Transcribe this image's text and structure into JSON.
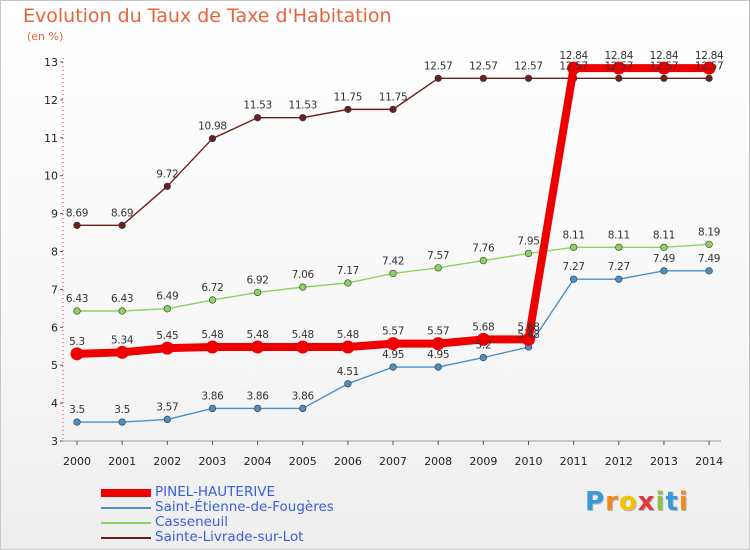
{
  "title": "Evolution du Taux de Taxe d'Habitation",
  "unit": "(en %)",
  "brand": {
    "letters": [
      "P",
      "r",
      "o",
      "x",
      "i",
      "t",
      "i"
    ],
    "colors": [
      "#3a9ad9",
      "#f08a1c",
      "#f5c400",
      "#e03a3a",
      "#8bc34a",
      "#3a9ad9",
      "#f08a1c"
    ]
  },
  "chart_data": {
    "type": "line",
    "title": "Evolution du Taux de Taxe d'Habitation",
    "ylabel": "(en %)",
    "xlabel": "",
    "ylim": [
      3,
      13
    ],
    "yticks": [
      3,
      4,
      5,
      6,
      7,
      8,
      9,
      10,
      11,
      12,
      13
    ],
    "x": [
      "2000",
      "2001",
      "2002",
      "2003",
      "2004",
      "2005",
      "2006",
      "2007",
      "2008",
      "2009",
      "2010",
      "2011",
      "2012",
      "2013",
      "2014"
    ],
    "grid": false,
    "legend": "bottom-left",
    "series": [
      {
        "name": "Sainte-Livrade-sur-Lot",
        "color": "#6b1f1f",
        "values": [
          8.69,
          8.69,
          9.72,
          10.98,
          11.53,
          11.53,
          11.75,
          11.75,
          12.57,
          12.57,
          12.57,
          12.57,
          12.57,
          12.57,
          12.57
        ],
        "labels": [
          "8.69",
          "8.69",
          "9.72",
          "10.98",
          "11.53",
          "11.53",
          "11.75",
          "11.75",
          "12.57",
          "12.57",
          "12.57",
          "12.57",
          "12.57",
          "12.57",
          "12.57"
        ]
      },
      {
        "name": "Casseneuil",
        "color": "#8dd35f",
        "values": [
          6.43,
          6.43,
          6.49,
          6.72,
          6.92,
          7.06,
          7.17,
          7.42,
          7.57,
          7.76,
          7.95,
          8.11,
          8.11,
          8.11,
          8.19
        ],
        "labels": [
          "6.43",
          "6.43",
          "6.49",
          "6.72",
          "6.92",
          "7.06",
          "7.17",
          "7.42",
          "7.57",
          "7.76",
          "7.95",
          "8.11",
          "8.11",
          "8.11",
          "8.19"
        ]
      },
      {
        "name": "Saint-Étienne-de-Fougères",
        "color": "#4a90c8",
        "values": [
          3.5,
          3.5,
          3.57,
          3.86,
          3.86,
          3.86,
          4.51,
          4.95,
          4.95,
          5.2,
          5.48,
          7.27,
          7.27,
          7.49,
          7.49
        ],
        "labels": [
          "3.5",
          "3.5",
          "3.57",
          "3.86",
          "3.86",
          "3.86",
          "4.51",
          "4.95",
          "4.95",
          "5.2",
          "5.48",
          "7.27",
          "7.27",
          "7.49",
          "7.49"
        ]
      },
      {
        "name": "PINEL-HAUTERIVE",
        "color": "#ee0000",
        "values": [
          5.3,
          5.34,
          5.45,
          5.48,
          5.48,
          5.48,
          5.48,
          5.57,
          5.57,
          5.68,
          5.68,
          12.84,
          12.84,
          12.84,
          12.84
        ],
        "labels": [
          "5.3",
          "5.34",
          "5.45",
          "5.48",
          "5.48",
          "5.48",
          "5.48",
          "5.57",
          "5.57",
          "5.68",
          "5.68",
          "12.84",
          "12.84",
          "12.84",
          "12.84"
        ]
      }
    ]
  },
  "legend": [
    {
      "name": "PINEL-HAUTERIVE",
      "color": "#ee0000",
      "thick": true
    },
    {
      "name": "Saint-Étienne-de-Fougères",
      "color": "#4a90c8",
      "thick": false
    },
    {
      "name": "Casseneuil",
      "color": "#8dd35f",
      "thick": false
    },
    {
      "name": "Sainte-Livrade-sur-Lot",
      "color": "#6b1f1f",
      "thick": false
    }
  ]
}
